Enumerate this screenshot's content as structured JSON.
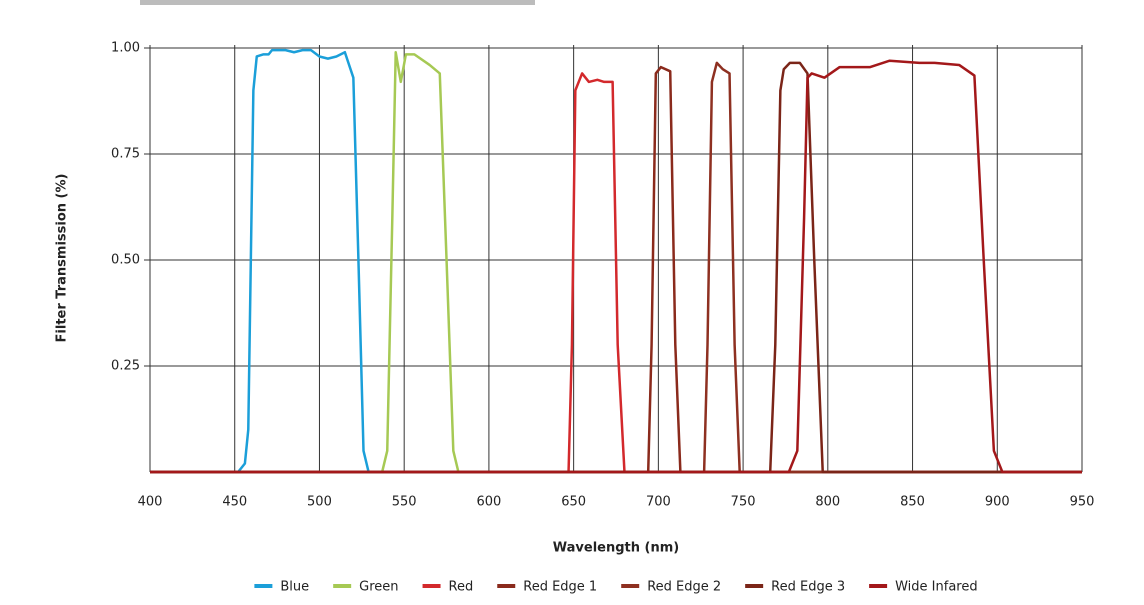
{
  "chart_data": {
    "type": "line",
    "x_label": "Wavelength (nm)",
    "y_label": "Filter Transmission (%)",
    "xlim": [
      400,
      950
    ],
    "xticks": [
      400,
      450,
      500,
      550,
      600,
      650,
      700,
      750,
      800,
      850,
      900,
      950
    ],
    "ylim": [
      0,
      1
    ],
    "yticks": [
      0.25,
      {
        "value": 0.5,
        "label": "0.50"
      },
      0.75,
      {
        "value": 1,
        "label": "1.00"
      }
    ],
    "grid": true,
    "legend": "bottom",
    "series": [
      {
        "name": "Blue",
        "color": "#1b9fd9",
        "x": [
          400,
          452,
          456,
          458,
          461,
          463,
          467,
          470,
          472,
          480,
          485,
          490,
          495,
          500,
          505,
          510,
          515,
          520,
          523,
          526,
          529,
          950
        ],
        "values": [
          0,
          0,
          0.02,
          0.1,
          0.9,
          0.98,
          0.985,
          0.985,
          0.995,
          0.995,
          0.99,
          0.995,
          0.995,
          0.98,
          0.975,
          0.98,
          0.99,
          0.93,
          0.5,
          0.05,
          0,
          0
        ]
      },
      {
        "name": "Green",
        "color": "#a6c954",
        "x": [
          400,
          537,
          540,
          543,
          545,
          548,
          551,
          556,
          565,
          571,
          575,
          579,
          582,
          950
        ],
        "values": [
          0,
          0,
          0.05,
          0.6,
          0.99,
          0.92,
          0.985,
          0.985,
          0.96,
          0.94,
          0.5,
          0.05,
          0,
          0
        ]
      },
      {
        "name": "Red",
        "color": "#d3292c",
        "x": [
          400,
          647,
          649,
          651,
          655,
          659,
          664,
          668,
          673,
          676,
          680,
          950
        ],
        "values": [
          0,
          0,
          0.3,
          0.9,
          0.94,
          0.92,
          0.925,
          0.92,
          0.92,
          0.3,
          0,
          0
        ]
      },
      {
        "name": "Red Edge 1",
        "color": "#8a2a1c",
        "x": [
          400,
          694,
          696,
          698.5,
          701.5,
          707,
          710,
          713,
          950
        ],
        "values": [
          0,
          0,
          0.3,
          0.94,
          0.955,
          0.945,
          0.3,
          0,
          0
        ]
      },
      {
        "name": "Red Edge 2",
        "color": "#8e3021",
        "x": [
          400,
          727,
          729,
          731.6,
          734.5,
          738,
          742,
          745,
          748,
          950
        ],
        "values": [
          0,
          0,
          0.3,
          0.92,
          0.965,
          0.95,
          0.94,
          0.3,
          0,
          0
        ]
      },
      {
        "name": "Red Edge 3",
        "color": "#7b2518",
        "x": [
          400,
          766,
          769,
          772,
          774,
          777.6,
          783.5,
          788,
          792,
          797,
          950
        ],
        "values": [
          0,
          0,
          0.3,
          0.9,
          0.95,
          0.965,
          0.965,
          0.94,
          0.5,
          0,
          0
        ]
      },
      {
        "name": "Wide Infared",
        "color": "#a3181a",
        "x": [
          400,
          777,
          782,
          786,
          788,
          790.5,
          798,
          807,
          825,
          836.5,
          854,
          863,
          877.5,
          886.5,
          892,
          898,
          903,
          950
        ],
        "values": [
          0,
          0,
          0.05,
          0.6,
          0.93,
          0.94,
          0.93,
          0.955,
          0.955,
          0.97,
          0.965,
          0.965,
          0.96,
          0.935,
          0.5,
          0.05,
          0,
          0
        ]
      }
    ]
  }
}
